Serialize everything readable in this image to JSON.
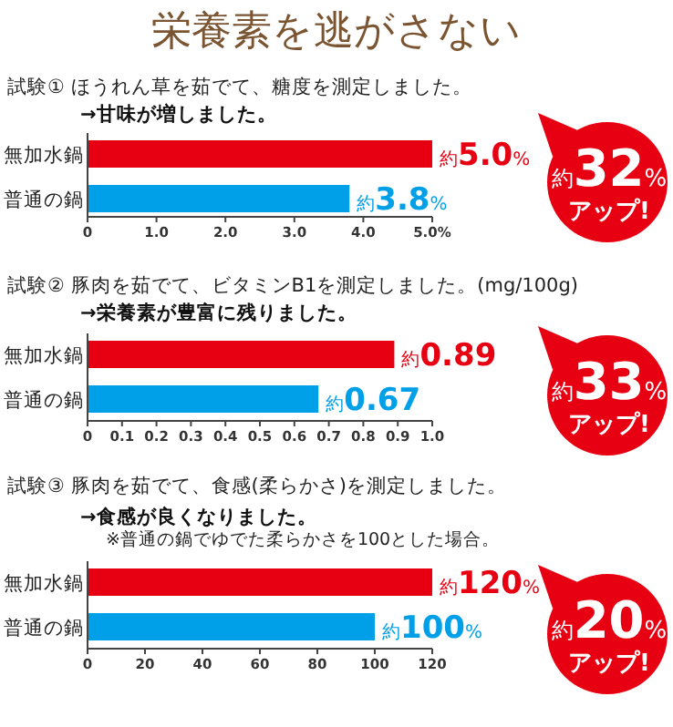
{
  "chart_data": [
    {
      "type": "other",
      "title": "栄養素を逃がさない"
    },
    {
      "type": "bar",
      "orientation": "horizontal",
      "title": "試験① ほうれん草を茹でて、糖度を測定しました。",
      "subtitle": "→甘味が増しました。",
      "categories": [
        "無加水鍋",
        "普通の鍋"
      ],
      "values": [
        5.0,
        3.8
      ],
      "colors": [
        "#e60012",
        "#00a0e9"
      ],
      "value_labels": [
        "約5.0%",
        "約3.8%"
      ],
      "xlim": [
        0,
        5
      ],
      "xticks": [
        0,
        {
          "value": 1,
          "label": "1.0"
        },
        {
          "value": 2,
          "label": "2.0"
        },
        {
          "value": 3,
          "label": "3.0"
        },
        {
          "value": 4,
          "label": "4.0"
        },
        {
          "value": 5,
          "label": "5.0%"
        }
      ],
      "annotations": [
        "約32%",
        "アップ!"
      ]
    },
    {
      "type": "bar",
      "orientation": "horizontal",
      "title": "試験② 豚肉を茹でて、ビタミンB1を測定しました。(mg/100g)",
      "subtitle": "→栄養素が豊富に残りました。",
      "categories": [
        "無加水鍋",
        "普通の鍋"
      ],
      "values": [
        0.89,
        0.67
      ],
      "colors": [
        "#e60012",
        "#00a0e9"
      ],
      "value_labels": [
        "約0.89",
        "約0.67"
      ],
      "xlim": [
        0,
        1
      ],
      "xticks": [
        0,
        0.1,
        0.2,
        0.3,
        0.4,
        0.5,
        0.6,
        0.7,
        0.8,
        0.9,
        {
          "value": 1,
          "label": "1.0"
        }
      ],
      "annotations": [
        "約33%",
        "アップ!"
      ]
    },
    {
      "type": "bar",
      "orientation": "horizontal",
      "title": "試験③ 豚肉を茹でて、食感(柔らかさ)を測定しました。",
      "subtitle": "→食感が良くなりました。",
      "categories": [
        "無加水鍋",
        "普通の鍋"
      ],
      "values": [
        120,
        100
      ],
      "colors": [
        "#e60012",
        "#00a0e9"
      ],
      "value_labels": [
        "約120%",
        "約100%"
      ],
      "xlim": [
        0,
        120
      ],
      "xticks": [
        0,
        20,
        40,
        60,
        80,
        100,
        120
      ],
      "annotations": [
        "※普通の鍋でゆでた柔らかさを100とした場合。",
        "約20%",
        "アップ!"
      ]
    }
  ]
}
